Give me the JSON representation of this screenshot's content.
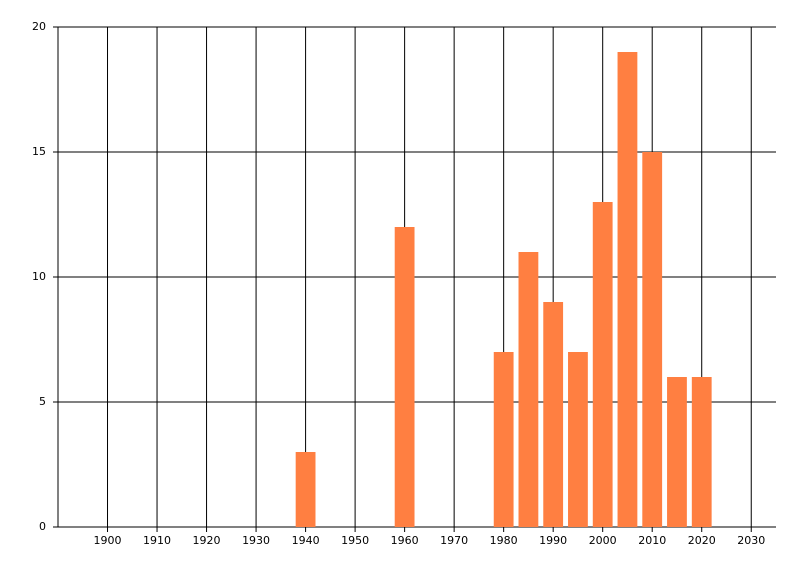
{
  "chart_data": {
    "type": "bar",
    "x": [
      1940,
      1960,
      1980,
      1985,
      1990,
      1995,
      2000,
      2005,
      2010,
      2015,
      2020
    ],
    "values": [
      3,
      12,
      7,
      11,
      9,
      7,
      13,
      19,
      15,
      6,
      6
    ],
    "color": "#ff7f41",
    "xlim": [
      1890,
      2035
    ],
    "xticks": [
      1900,
      1910,
      1920,
      1930,
      1940,
      1950,
      1960,
      1970,
      1980,
      1990,
      2000,
      2010,
      2020,
      2030
    ],
    "ylim": [
      0,
      20
    ],
    "yticks": [
      0,
      5,
      10,
      15,
      20
    ],
    "grid": true
  }
}
